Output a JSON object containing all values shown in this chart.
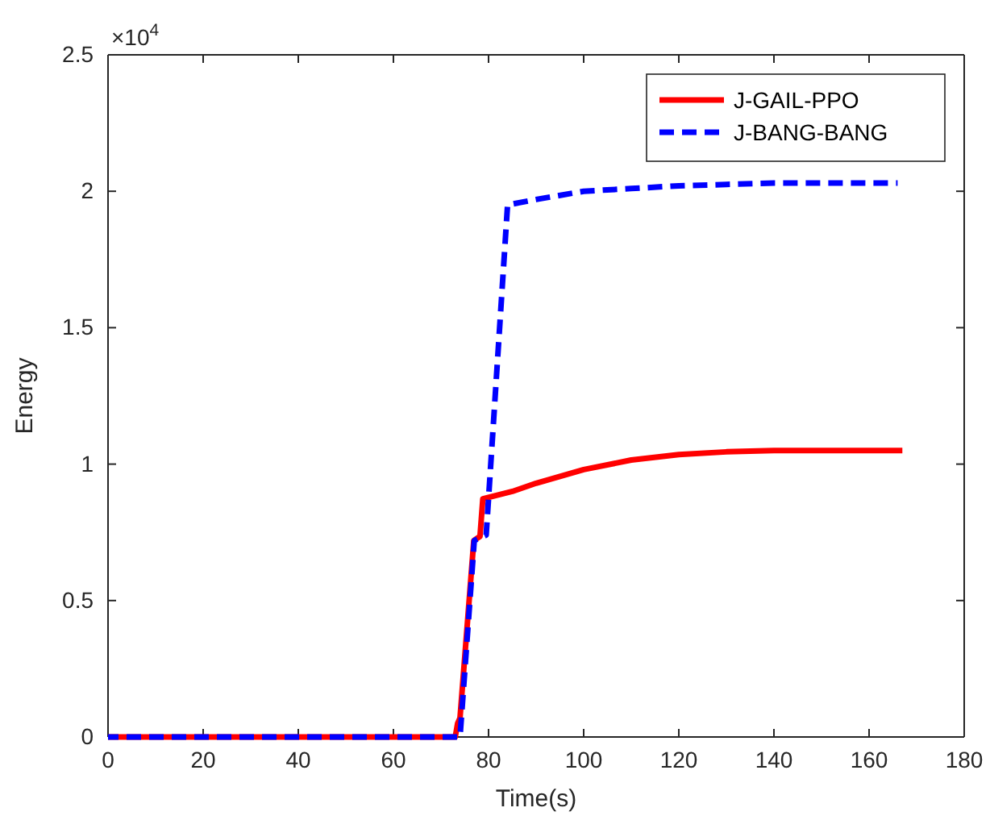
{
  "chart_data": {
    "type": "line",
    "xlabel": "Time(s)",
    "ylabel": "Energy",
    "annotations": [
      "×10$^{4}$"
    ],
    "xlim": [
      0,
      180
    ],
    "xticks": [
      0,
      20,
      40,
      60,
      80,
      100,
      120,
      140,
      160,
      180
    ],
    "ylim": [
      0,
      2.5
    ],
    "yticks": [
      0,
      0.5,
      1,
      1.5,
      2,
      2.5
    ],
    "grid": false,
    "legend": "top right",
    "series": [
      {
        "name": "J-GAIL-PPO",
        "color": "#ff0000",
        "line_style": "solid",
        "x": [
          0,
          73,
          73.5,
          74,
          76.9,
          78.2,
          78.8,
          85,
          90,
          100,
          110,
          120,
          130,
          140,
          150,
          160,
          167
        ],
        "values": [
          0,
          0,
          0.05,
          0.07,
          0.72,
          0.735,
          0.873,
          0.9,
          0.93,
          0.98,
          1.015,
          1.035,
          1.045,
          1.05,
          1.05,
          1.05,
          1.05
        ]
      },
      {
        "name": "J-BANG-BANG",
        "color": "#0000ff",
        "line_style": "dashed",
        "x": [
          0,
          74,
          77,
          79.5,
          84,
          90,
          100,
          110,
          120,
          130,
          140,
          150,
          160,
          166
        ],
        "values": [
          0,
          0,
          0.72,
          0.74,
          1.95,
          1.97,
          2.0,
          2.01,
          2.02,
          2.025,
          2.03,
          2.03,
          2.03,
          2.03
        ]
      }
    ]
  }
}
